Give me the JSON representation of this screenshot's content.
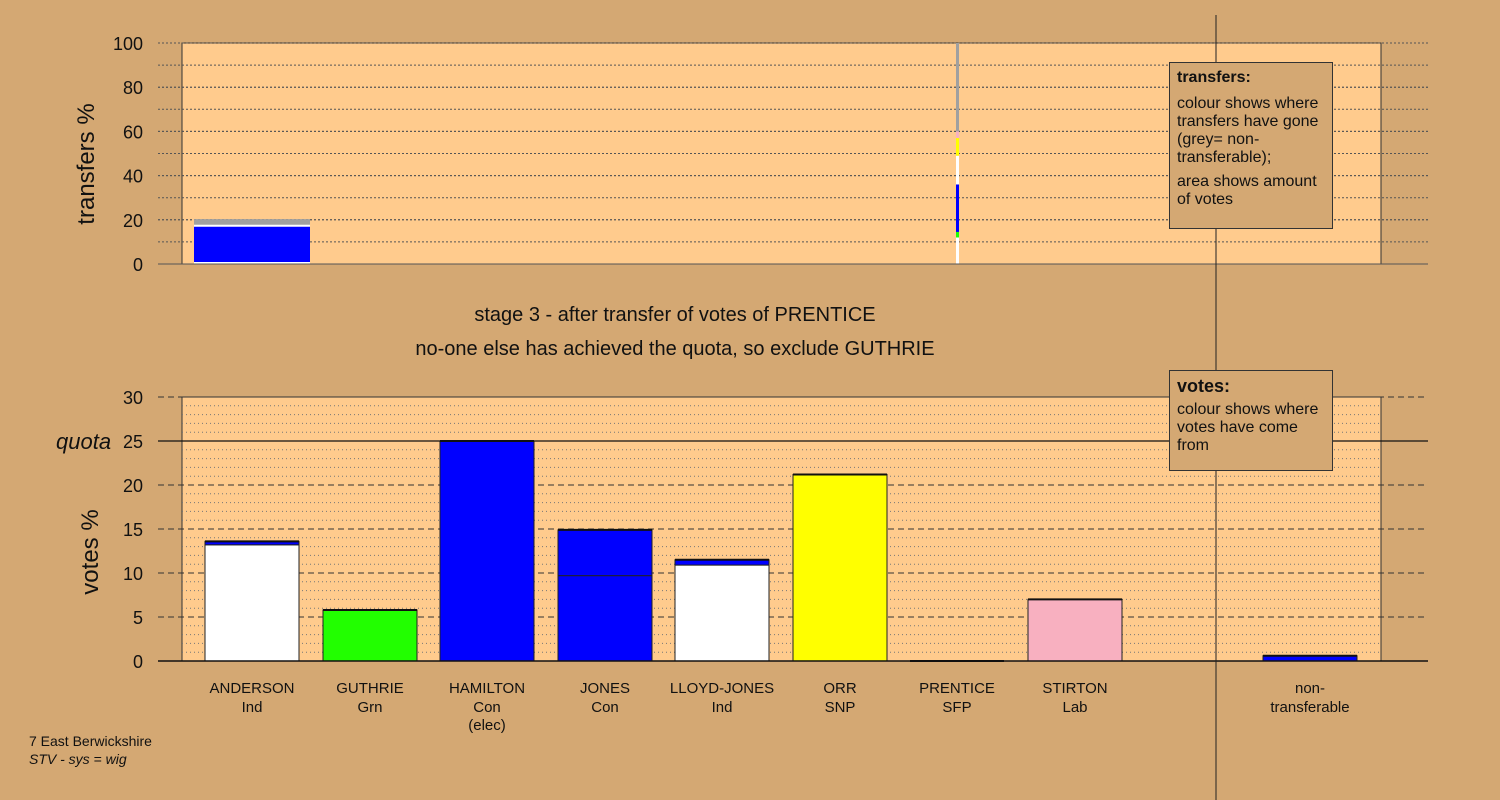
{
  "chart_data": {
    "type": "bar",
    "candidates": [
      {
        "name": "ANDERSON",
        "party": "Ind",
        "note": ""
      },
      {
        "name": "GUTHRIE",
        "party": "Grn",
        "note": ""
      },
      {
        "name": "HAMILTON",
        "party": "Con",
        "note": "(elec)"
      },
      {
        "name": "JONES",
        "party": "Con",
        "note": ""
      },
      {
        "name": "LLOYD-JONES",
        "party": "Ind",
        "note": ""
      },
      {
        "name": "ORR",
        "party": "SNP",
        "note": ""
      },
      {
        "name": "PRENTICE",
        "party": "SFP",
        "note": ""
      },
      {
        "name": "STIRTON",
        "party": "Lab",
        "note": ""
      }
    ],
    "nontransferable": {
      "label1": "non-",
      "label2": "transferable"
    },
    "colors": {
      "background": "#d4a873",
      "plot": "#ffcb8d",
      "Ind": "#ffffff",
      "Grn": "#22ff00",
      "Con": "#0000ff",
      "SNP": "#ffff00",
      "SFP": "#a0a0a0",
      "Lab": "#f8b0c0",
      "grey": "#a0a0a0"
    },
    "transfers": {
      "ylabel": "transfers %",
      "yticks": [
        0,
        20,
        40,
        60,
        80,
        100
      ],
      "ylim": [
        0,
        100
      ],
      "bars": [
        {
          "candidate": "ANDERSON",
          "segments": [
            {
              "value": 17.3,
              "party": "Con"
            },
            {
              "value": 3.0,
              "party": "grey"
            }
          ]
        }
      ],
      "source_column": [
        {
          "from": 0,
          "to": 12,
          "party": "Ind"
        },
        {
          "from": 12,
          "to": 14.5,
          "party": "Grn"
        },
        {
          "from": 14.5,
          "to": 36,
          "party": "Con"
        },
        {
          "from": 36,
          "to": 49,
          "party": "Ind"
        },
        {
          "from": 49,
          "to": 57,
          "party": "SNP"
        },
        {
          "from": 57,
          "to": 60,
          "party": "Lab"
        },
        {
          "from": 60,
          "to": 100,
          "party": "grey"
        }
      ]
    },
    "votes": {
      "ylabel": "votes %",
      "yticks": [
        0,
        5,
        10,
        15,
        20,
        25,
        30
      ],
      "ylim": [
        0,
        30
      ],
      "quota": 25,
      "quota_label": "quota",
      "bars": [
        {
          "candidate": "ANDERSON",
          "segments": [
            {
              "value": 13.2,
              "party": "Ind"
            },
            {
              "value": 0.4,
              "party": "Con"
            }
          ]
        },
        {
          "candidate": "GUTHRIE",
          "segments": [
            {
              "value": 5.8,
              "party": "Grn"
            }
          ]
        },
        {
          "candidate": "HAMILTON",
          "segments": [
            {
              "value": 25.0,
              "party": "Con"
            }
          ]
        },
        {
          "candidate": "JONES",
          "segments": [
            {
              "value": 9.7,
              "party": "Con"
            },
            {
              "value": 5.2,
              "party": "Con"
            }
          ]
        },
        {
          "candidate": "LLOYD-JONES",
          "segments": [
            {
              "value": 10.9,
              "party": "Ind"
            },
            {
              "value": 0.6,
              "party": "Con"
            }
          ]
        },
        {
          "candidate": "ORR",
          "segments": [
            {
              "value": 21.2,
              "party": "SNP"
            }
          ]
        },
        {
          "candidate": "PRENTICE",
          "segments": [
            {
              "value": 0,
              "party": "SFP"
            }
          ]
        },
        {
          "candidate": "STIRTON",
          "segments": [
            {
              "value": 7.0,
              "party": "Lab"
            }
          ]
        },
        {
          "candidate": "non-transferable",
          "segments": [
            {
              "value": 0.6,
              "party": "Con"
            }
          ]
        }
      ]
    }
  },
  "stage": {
    "line1": "stage 3 - after transfer of votes of PRENTICE",
    "line2": "no-one else has achieved the quota, so exclude GUTHRIE"
  },
  "legend_transfers": {
    "title": "transfers:",
    "text1": "colour shows where transfers have gone (grey= non-transferable);",
    "text2": "area shows amount of votes"
  },
  "legend_votes": {
    "title": "votes:",
    "text1": "colour shows where votes have come from"
  },
  "footer": {
    "line1": "7 East Berwickshire",
    "line2": "STV - sys = wig"
  }
}
